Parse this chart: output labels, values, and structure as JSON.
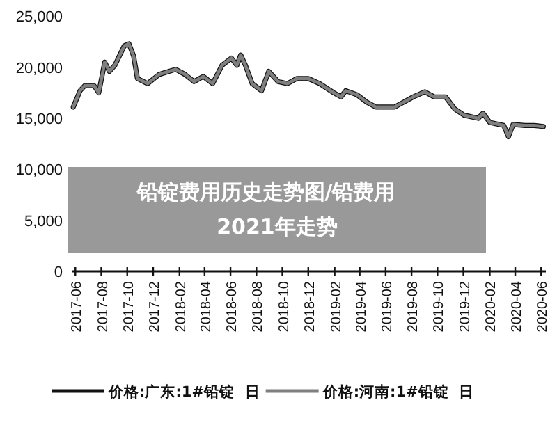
{
  "chart_data": {
    "type": "line",
    "title": "铅锭费用历史走势图/铅费用2021年走势",
    "x": [
      "2017-05-27",
      "2017-06-12",
      "2017-06-23",
      "2017-07-15",
      "2017-07-26",
      "2017-08-09",
      "2017-08-20",
      "2017-09-02",
      "2017-09-24",
      "2017-10-05",
      "2017-10-16",
      "2017-10-25",
      "2017-11-18",
      "2017-12-15",
      "2018-01-23",
      "2018-02-14",
      "2018-03-07",
      "2018-03-29",
      "2018-04-20",
      "2018-05-12",
      "2018-06-03",
      "2018-06-16",
      "2018-06-25",
      "2018-07-06",
      "2018-07-22",
      "2018-08-13",
      "2018-08-30",
      "2018-09-21",
      "2018-10-13",
      "2018-11-04",
      "2018-12-01",
      "2018-12-28",
      "2019-01-30",
      "2019-02-16",
      "2019-02-27",
      "2019-03-26",
      "2019-04-17",
      "2019-05-09",
      "2019-06-22",
      "2019-07-14",
      "2019-08-05",
      "2019-09-01",
      "2019-09-23",
      "2019-10-20",
      "2019-11-11",
      "2019-12-03",
      "2020-01-05",
      "2020-01-16",
      "2020-02-01",
      "2020-03-05",
      "2020-03-16",
      "2020-03-27",
      "2020-04-24",
      "2020-05-16",
      "2020-06-06"
    ],
    "series": [
      {
        "name": "价格:广东:1#铅锭  日",
        "color": "#111111",
        "values": [
          16100,
          17700,
          18200,
          18200,
          17500,
          20500,
          19600,
          20200,
          22100,
          22300,
          21100,
          18900,
          18400,
          19300,
          19800,
          19300,
          18600,
          19100,
          18400,
          20200,
          20900,
          20200,
          21200,
          20200,
          18400,
          17700,
          19600,
          18600,
          18400,
          18900,
          18900,
          18400,
          17500,
          17100,
          17700,
          17300,
          16600,
          16100,
          16100,
          16600,
          17100,
          17600,
          17100,
          17100,
          15900,
          15300,
          15000,
          15500,
          14600,
          14300,
          13200,
          14400,
          14300,
          14300,
          14200
        ]
      },
      {
        "name": "价格:河南:1#铅锭  日",
        "color": "#7f7f7f",
        "values": [
          16100,
          17700,
          18200,
          18200,
          17500,
          20500,
          19600,
          20200,
          22100,
          22300,
          21100,
          18900,
          18400,
          19300,
          19800,
          19300,
          18600,
          19100,
          18400,
          20200,
          20900,
          20200,
          21200,
          20200,
          18400,
          17700,
          19600,
          18600,
          18400,
          18900,
          18900,
          18400,
          17500,
          17100,
          17700,
          17300,
          16600,
          16100,
          16100,
          16600,
          17100,
          17600,
          17100,
          17100,
          15900,
          15300,
          15000,
          15500,
          14600,
          14300,
          13200,
          14400,
          14300,
          14300,
          14200
        ]
      }
    ],
    "xlim": [
      "2017-05-25",
      "2020-06-12"
    ],
    "xticks": [
      "2017-06",
      "2017-08",
      "2017-10",
      "2017-12",
      "2018-02",
      "2018-04",
      "2018-06",
      "2018-08",
      "2018-10",
      "2018-12",
      "2019-02",
      "2019-04",
      "2019-06",
      "2019-08",
      "2019-10",
      "2019-12",
      "2020-02",
      "2020-04",
      "2020-06"
    ],
    "ylim": [
      0,
      25000
    ],
    "yticks": [
      0,
      {
        "value": 5000,
        "label": "5,000"
      },
      {
        "value": 10000,
        "label": "10,000"
      },
      {
        "value": 15000,
        "label": "15,000"
      },
      {
        "value": 20000,
        "label": "20,000"
      },
      {
        "value": 25000,
        "label": "25,000"
      }
    ],
    "grid": false,
    "legend": "bottom",
    "marker": "none",
    "line_style": "solid"
  }
}
